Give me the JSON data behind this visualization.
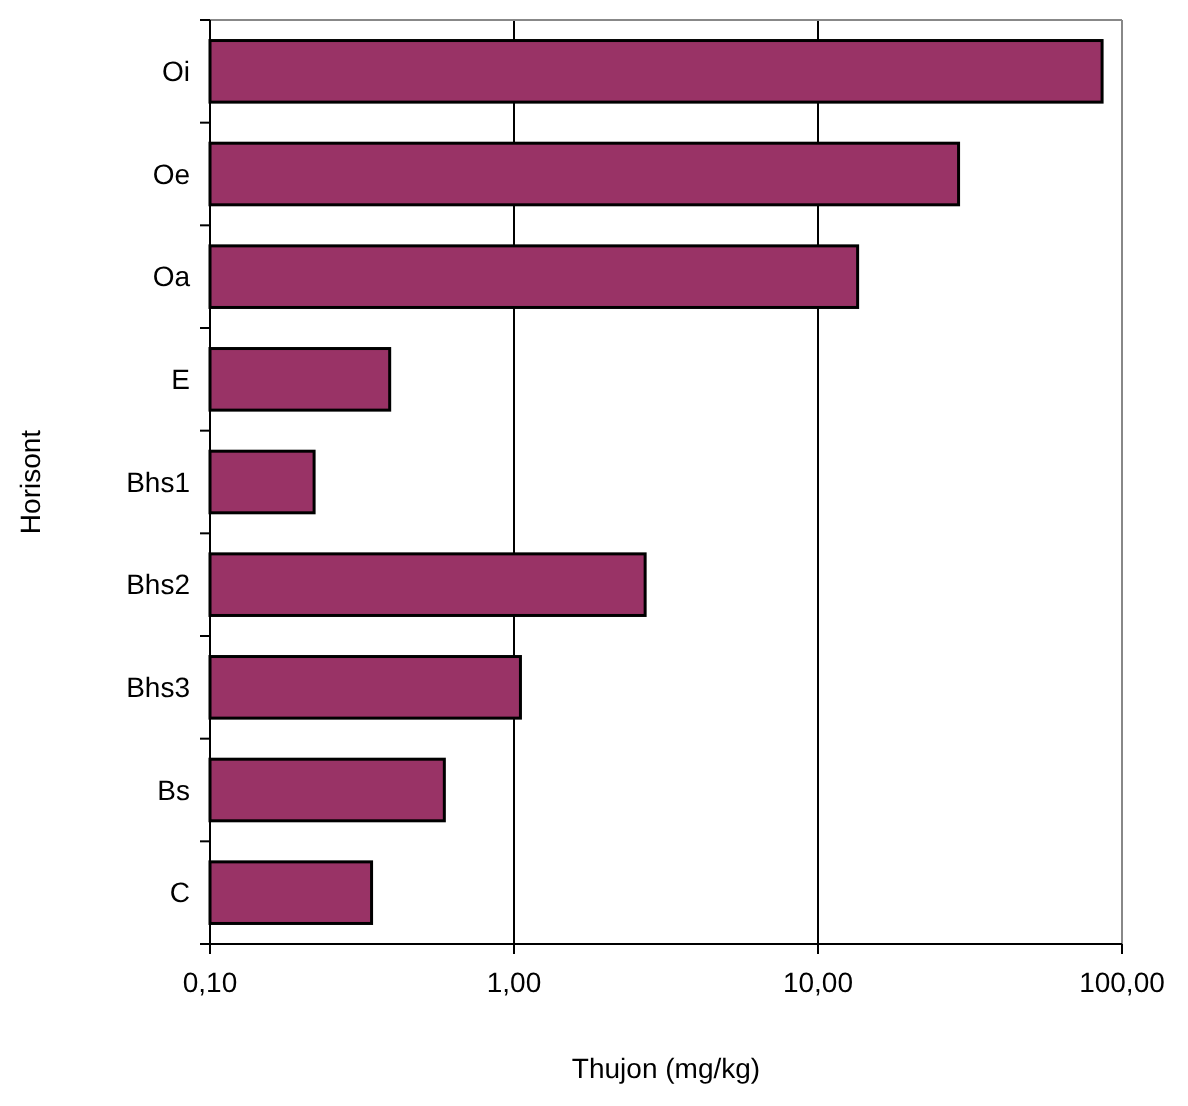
{
  "chart_data": {
    "type": "bar",
    "orientation": "horizontal",
    "xlabel": "Thujon (mg/kg)",
    "ylabel": "Horisont",
    "categories": [
      "Oi",
      "Oe",
      "Oa",
      "E",
      "Bhs1",
      "Bhs2",
      "Bhs3",
      "Bs",
      "C"
    ],
    "values": [
      86,
      29,
      13.5,
      0.39,
      0.22,
      2.7,
      1.05,
      0.59,
      0.34
    ],
    "color": "#993366",
    "log": "x",
    "xlim": [
      0.1,
      100
    ],
    "xticks": [
      {
        "value": 0.1,
        "label": "0,10"
      },
      {
        "value": 1,
        "label": "1,00"
      },
      {
        "value": 10,
        "label": "10,00"
      },
      {
        "value": 100,
        "label": "100,00"
      }
    ],
    "grid": "x"
  }
}
